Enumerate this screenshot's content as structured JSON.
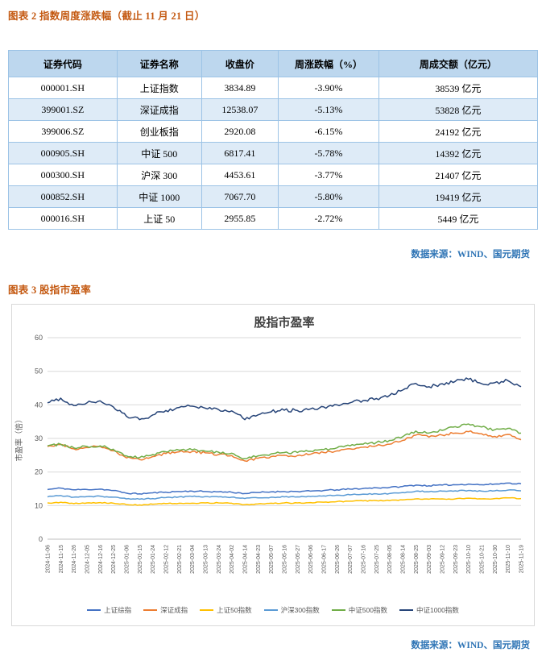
{
  "figure2": {
    "title": "图表 2 指数周度涨跌幅（截止 11 月 21 日）",
    "table": {
      "headers": [
        "证券代码",
        "证券名称",
        "收盘价",
        "周涨跌幅（%）",
        "周成交额（亿元）"
      ],
      "rows": [
        [
          "000001.SH",
          "上证指数",
          "3834.89",
          "-3.90%",
          "38539 亿元"
        ],
        [
          "399001.SZ",
          "深证成指",
          "12538.07",
          "-5.13%",
          "53828 亿元"
        ],
        [
          "399006.SZ",
          "创业板指",
          "2920.08",
          "-6.15%",
          "24192 亿元"
        ],
        [
          "000905.SH",
          "中证 500",
          "6817.41",
          "-5.78%",
          "14392 亿元"
        ],
        [
          "000300.SH",
          "沪深 300",
          "4453.61",
          "-3.77%",
          "21407 亿元"
        ],
        [
          "000852.SH",
          "中证 1000",
          "7067.70",
          "-5.80%",
          "19419 亿元"
        ],
        [
          "000016.SH",
          "上证 50",
          "2955.85",
          "-2.72%",
          "5449 亿元"
        ]
      ]
    },
    "source": "数据来源：WIND、国元期货"
  },
  "figure3": {
    "title": "图表 3 股指市盈率",
    "source": "数据来源：WIND、国元期货"
  },
  "chart_data": {
    "type": "line",
    "title": "股指市盈率",
    "xlabel": "",
    "ylabel": "市盈率（倍）",
    "ylim": [
      0,
      60
    ],
    "ytick_step": 10,
    "grid": true,
    "legend_position": "bottom",
    "x": [
      "2024-11-06",
      "2024-11-15",
      "2024-11-26",
      "2024-12-05",
      "2024-12-16",
      "2024-12-25",
      "2025-01-06",
      "2025-01-15",
      "2025-01-24",
      "2025-02-12",
      "2025-02-21",
      "2025-03-04",
      "2025-03-13",
      "2025-03-24",
      "2025-04-02",
      "2025-04-14",
      "2025-04-23",
      "2025-05-07",
      "2025-05-16",
      "2025-05-27",
      "2025-06-06",
      "2025-06-17",
      "2025-06-26",
      "2025-07-07",
      "2025-07-16",
      "2025-07-25",
      "2025-08-05",
      "2025-08-14",
      "2025-08-25",
      "2025-09-03",
      "2025-09-12",
      "2025-09-23",
      "2025-10-10",
      "2025-10-21",
      "2025-10-30",
      "2025-11-10",
      "2025-11-19"
    ],
    "series": [
      {
        "name": "上证综指",
        "color": "#4472C4",
        "values": [
          14.8,
          15.2,
          14.7,
          14.8,
          14.9,
          14.5,
          13.7,
          13.5,
          13.8,
          14.0,
          14.2,
          14.3,
          14.2,
          14.1,
          14.0,
          13.6,
          13.9,
          14.1,
          14.2,
          14.2,
          14.3,
          14.5,
          14.7,
          14.9,
          15.1,
          15.3,
          15.4,
          15.7,
          16.1,
          15.9,
          16.1,
          16.2,
          16.4,
          16.2,
          16.4,
          16.7,
          16.5
        ]
      },
      {
        "name": "深证成指",
        "color": "#ED7D31",
        "values": [
          27.6,
          28.2,
          26.9,
          27.3,
          27.6,
          26.3,
          24.2,
          23.7,
          24.6,
          25.5,
          26.0,
          26.1,
          25.7,
          25.2,
          24.9,
          23.3,
          24.1,
          24.6,
          25.0,
          24.9,
          25.3,
          25.8,
          26.3,
          26.9,
          27.4,
          27.8,
          28.3,
          29.4,
          31.0,
          30.4,
          31.0,
          31.6,
          32.0,
          31.4,
          30.6,
          31.2,
          29.6
        ]
      },
      {
        "name": "上证50指数",
        "color": "#FFC000",
        "values": [
          10.8,
          11.0,
          10.6,
          10.8,
          10.9,
          10.7,
          10.3,
          10.2,
          10.4,
          10.6,
          10.7,
          10.7,
          10.8,
          10.8,
          10.7,
          10.3,
          10.5,
          10.7,
          10.8,
          10.8,
          10.9,
          11.0,
          11.2,
          11.3,
          11.4,
          11.5,
          11.5,
          11.7,
          12.0,
          11.9,
          12.0,
          12.0,
          12.2,
          12.0,
          12.1,
          12.3,
          12.1
        ]
      },
      {
        "name": "沪深300指数",
        "color": "#5B9BD5",
        "values": [
          12.6,
          13.0,
          12.5,
          12.7,
          12.8,
          12.5,
          12.0,
          11.9,
          12.1,
          12.4,
          12.6,
          12.7,
          12.7,
          12.6,
          12.5,
          12.1,
          12.3,
          12.5,
          12.6,
          12.6,
          12.7,
          12.9,
          13.1,
          13.2,
          13.4,
          13.5,
          13.6,
          13.9,
          14.3,
          14.1,
          14.3,
          14.4,
          14.5,
          14.3,
          14.4,
          14.6,
          14.4
        ]
      },
      {
        "name": "中证500指数",
        "color": "#70AD47",
        "values": [
          27.8,
          28.3,
          27.2,
          27.6,
          27.8,
          26.8,
          24.8,
          24.3,
          25.2,
          26.0,
          26.5,
          26.6,
          26.2,
          25.9,
          25.6,
          24.0,
          24.8,
          25.4,
          25.8,
          25.8,
          26.2,
          26.7,
          27.2,
          27.8,
          28.3,
          28.8,
          29.4,
          30.5,
          32.2,
          31.6,
          32.4,
          33.5,
          34.3,
          33.4,
          32.6,
          33.0,
          31.6
        ]
      },
      {
        "name": "中证1000指数",
        "color": "#264478",
        "values": [
          40.6,
          42.0,
          39.8,
          40.6,
          41.2,
          39.4,
          36.6,
          35.6,
          37.0,
          38.3,
          39.2,
          39.6,
          39.0,
          38.6,
          38.2,
          35.6,
          37.0,
          37.9,
          38.4,
          38.3,
          38.8,
          39.4,
          40.0,
          40.6,
          41.3,
          41.9,
          42.8,
          44.4,
          46.4,
          45.4,
          46.3,
          47.0,
          47.6,
          46.3,
          46.6,
          47.2,
          45.4
        ]
      }
    ]
  },
  "colors": {
    "figure_title": "#C45911",
    "source_text": "#2E74B5",
    "table_header_bg": "#BDD7EE",
    "table_alt_row_bg": "#DEEBF7",
    "table_border": "#9CC3E6",
    "chart_grid": "#D9D9D9",
    "chart_axis": "#BFBFBF"
  }
}
